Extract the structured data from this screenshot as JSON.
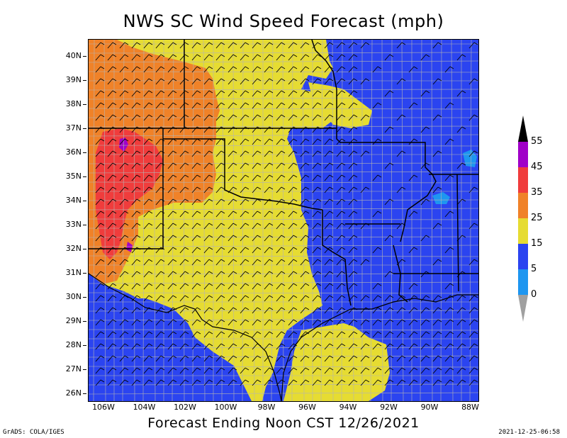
{
  "title": "NWS SC Wind Speed Forecast (mph)",
  "subtitle": "Forecast Ending Noon CST 12/26/2021",
  "credit": "GrADS: COLA/IGES",
  "timestamp": "2021-12-25-06:58",
  "latitude_labels": [
    "40N",
    "39N",
    "38N",
    "37N",
    "36N",
    "35N",
    "34N",
    "33N",
    "32N",
    "31N",
    "30N",
    "29N",
    "28N",
    "27N",
    "26N"
  ],
  "longitude_labels": [
    "106W",
    "104W",
    "102W",
    "100W",
    "98W",
    "96W",
    "94W",
    "92W",
    "90W",
    "88W"
  ],
  "legend": {
    "labels": [
      "55",
      "45",
      "35",
      "25",
      "15",
      "5",
      "0"
    ],
    "bins": [
      {
        "range": "45-55",
        "color": "#a000c8"
      },
      {
        "range": "35-45",
        "color": "#f03c3c"
      },
      {
        "range": "25-35",
        "color": "#f08228"
      },
      {
        "range": "15-25",
        "color": "#e6dc32"
      },
      {
        "range": "5-15",
        "color": "#2b44f0"
      },
      {
        "range": "0-5",
        "color": "#1e96f0"
      }
    ],
    "over_color": "#000000",
    "under_color": "#a0a0a0"
  },
  "colors": {
    "wind_5_15": "#2b44f0",
    "wind_15_25": "#e6dc32",
    "wind_25_35": "#f08228",
    "wind_35_45": "#f03c3c",
    "wind_45_55": "#a000c8",
    "wind_0_5": "#1e96f0",
    "state_border": "#000000",
    "county_border": "#b4b4b4",
    "wind_barb": "#000000"
  }
}
